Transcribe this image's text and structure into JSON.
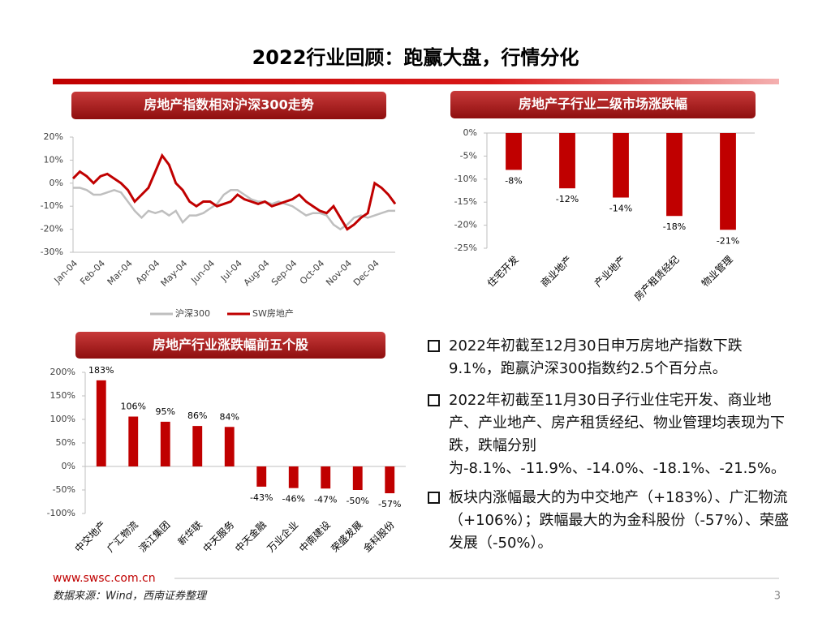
{
  "title": "2022行业回顾：跑赢大盘，行情分化",
  "chart_data": [
    {
      "type": "line",
      "title": "房地产指数相对沪深300走势",
      "categories": [
        "Jan-04",
        null,
        null,
        null,
        "Feb-04",
        null,
        null,
        null,
        "Mar-04",
        null,
        null,
        null,
        "Apr-04",
        null,
        null,
        null,
        "May-04",
        null,
        null,
        null,
        "Jun-04",
        null,
        null,
        null,
        "Jul-04",
        null,
        null,
        null,
        "Aug-04",
        null,
        null,
        null,
        "Sep-04",
        null,
        null,
        null,
        "Oct-04",
        null,
        null,
        null,
        "Nov-04",
        null,
        null,
        null,
        "Dec-04",
        null,
        null,
        null
      ],
      "series": [
        {
          "name": "沪深300",
          "color": "#bfbfbf",
          "values": [
            -2,
            -2,
            -3,
            -5,
            -5,
            -4,
            -3,
            -4,
            -8,
            -12,
            -15,
            -12,
            -13,
            -12,
            -14,
            -12,
            -17,
            -14,
            -14,
            -13,
            -11,
            -9,
            -5,
            -3,
            -3,
            -5,
            -7,
            -8,
            -8,
            -9,
            -8,
            -9,
            -10,
            -12,
            -14,
            -13,
            -13,
            -14,
            -18,
            -20,
            -18,
            -15,
            -14,
            -15,
            -14,
            -13,
            -12,
            -12
          ]
        },
        {
          "name": "SW房地产",
          "color": "#c00000",
          "values": [
            2,
            5,
            3,
            0,
            3,
            4,
            2,
            0,
            -3,
            -8,
            -5,
            -2,
            5,
            12,
            8,
            0,
            -3,
            -8,
            -10,
            -8,
            -8,
            -10,
            -9,
            -8,
            -5,
            -7,
            -8,
            -9,
            -8,
            -10,
            -9,
            -8,
            -7,
            -5,
            -8,
            -10,
            -12,
            -13,
            -10,
            -15,
            -20,
            -18,
            -15,
            -13,
            0,
            -2,
            -5,
            -9
          ]
        }
      ],
      "ylim": [
        -30,
        20
      ],
      "yticks": [
        {
          "value": -30,
          "label": "-30%"
        },
        {
          "value": -20,
          "label": "-20%"
        },
        {
          "value": -10,
          "label": "-10%"
        },
        {
          "value": 0,
          "label": "0%"
        },
        {
          "value": 10,
          "label": "10%"
        },
        {
          "value": 20,
          "label": "20%"
        }
      ],
      "grid": false,
      "legend": "bottom"
    },
    {
      "type": "bar",
      "title": "房地产子行业二级市场涨跌幅",
      "categories": [
        "住宅开发",
        "商业地产",
        "产业地产",
        "房产租赁经纪",
        "物业管理"
      ],
      "values": [
        -8,
        -12,
        -14,
        -18,
        -21
      ],
      "value_labels": [
        "-8%",
        "-12%",
        "-14%",
        "-18%",
        "-21%"
      ],
      "color": "#c00000",
      "ylim": [
        -25,
        0
      ],
      "yticks": [
        {
          "value": -25,
          "label": "-25%"
        },
        {
          "value": -20,
          "label": "-20%"
        },
        {
          "value": -15,
          "label": "-15%"
        },
        {
          "value": -10,
          "label": "-10%"
        },
        {
          "value": -5,
          "label": "-5%"
        },
        {
          "value": 0,
          "label": "0%"
        }
      ],
      "grid": false
    },
    {
      "type": "bar",
      "title": "房地产行业涨跌幅前五个股",
      "categories": [
        "中交地产",
        "广汇物流",
        "滨江集团",
        "新华联",
        "中天服务",
        "中天金融",
        "万业企业",
        "中南建设",
        "荣盛发展",
        "金科股份"
      ],
      "values": [
        183,
        106,
        95,
        86,
        84,
        -43,
        -46,
        -47,
        -50,
        -57
      ],
      "value_labels": [
        "183%",
        "106%",
        "95%",
        "86%",
        "84%",
        "-43%",
        "-46%",
        "-47%",
        "-50%",
        "-57%"
      ],
      "color": "#c00000",
      "ylim": [
        -100,
        200
      ],
      "yticks": [
        {
          "value": -100,
          "label": "-100%"
        },
        {
          "value": -50,
          "label": "-50%"
        },
        {
          "value": 0,
          "label": "0%"
        },
        {
          "value": 50,
          "label": "50%"
        },
        {
          "value": 100,
          "label": "100%"
        },
        {
          "value": 150,
          "label": "150%"
        },
        {
          "value": 200,
          "label": "200%"
        }
      ],
      "grid": false
    }
  ],
  "bullets": [
    "2022年初截至12月30日申万房地产指数下跌9.1%，跑赢沪深300指数约2.5个百分点。",
    "2022年初截至11月30日子行业住宅开发、商业地产、产业地产、房产租赁经纪、物业管理均表现为下跌，跌幅分别为-8.1%、-11.9%、-14.0%、-18.1%、-21.5%。",
    "板块内涨幅最大的为中交地产（+183%）、广汇物流（+106%）；跌幅最大的为金科股份（-57%）、荣盛发展（-50%）。"
  ],
  "footer": {
    "url": "www.swsc.com.cn",
    "source": "数据来源：Wind，西南证券整理",
    "page": "3"
  }
}
